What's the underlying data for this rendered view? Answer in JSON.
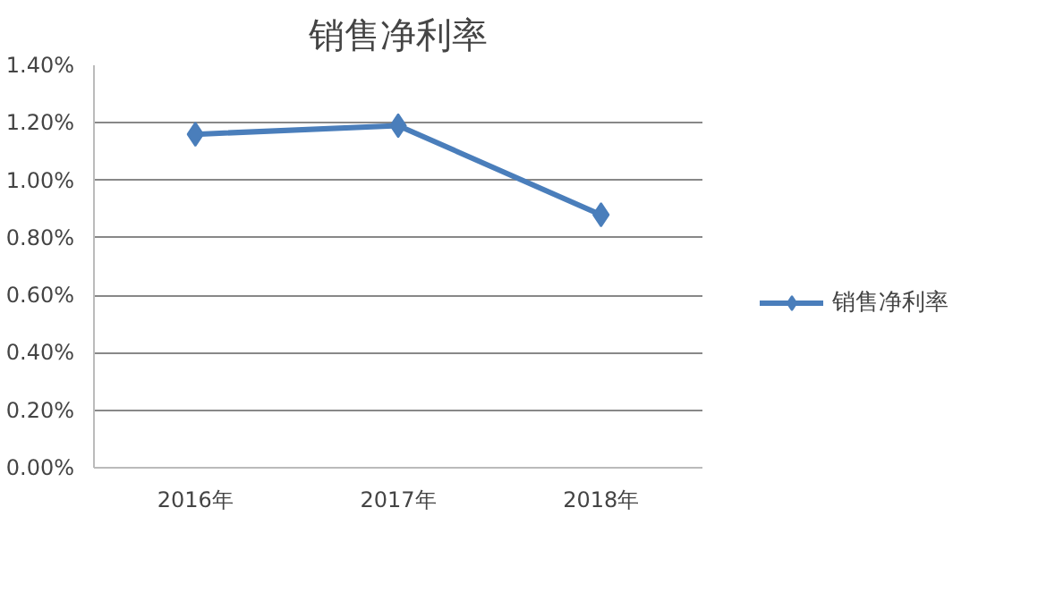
{
  "chart_data": {
    "type": "line",
    "title": "销售净利率",
    "categories": [
      "2016年",
      "2017年",
      "2018年"
    ],
    "series": [
      {
        "name": "销售净利率",
        "color": "#4a7ebb",
        "values": [
          1.16,
          1.19,
          0.88
        ]
      }
    ],
    "ylim": [
      0,
      1.4
    ],
    "yticks": [
      {
        "value": 0,
        "label": "0.00%"
      },
      {
        "value": 0.2,
        "label": "0.20%"
      },
      {
        "value": 0.4,
        "label": "0.40%"
      },
      {
        "value": 0.6,
        "label": "0.60%"
      },
      {
        "value": 0.8,
        "label": "0.80%"
      },
      {
        "value": 1.0,
        "label": "1.00%"
      },
      {
        "value": 1.2,
        "label": "1.20%"
      },
      {
        "value": 1.4,
        "label": "1.40%"
      }
    ],
    "grid": "y",
    "legend": "right",
    "marker": "diamond",
    "line_style": "solid"
  }
}
